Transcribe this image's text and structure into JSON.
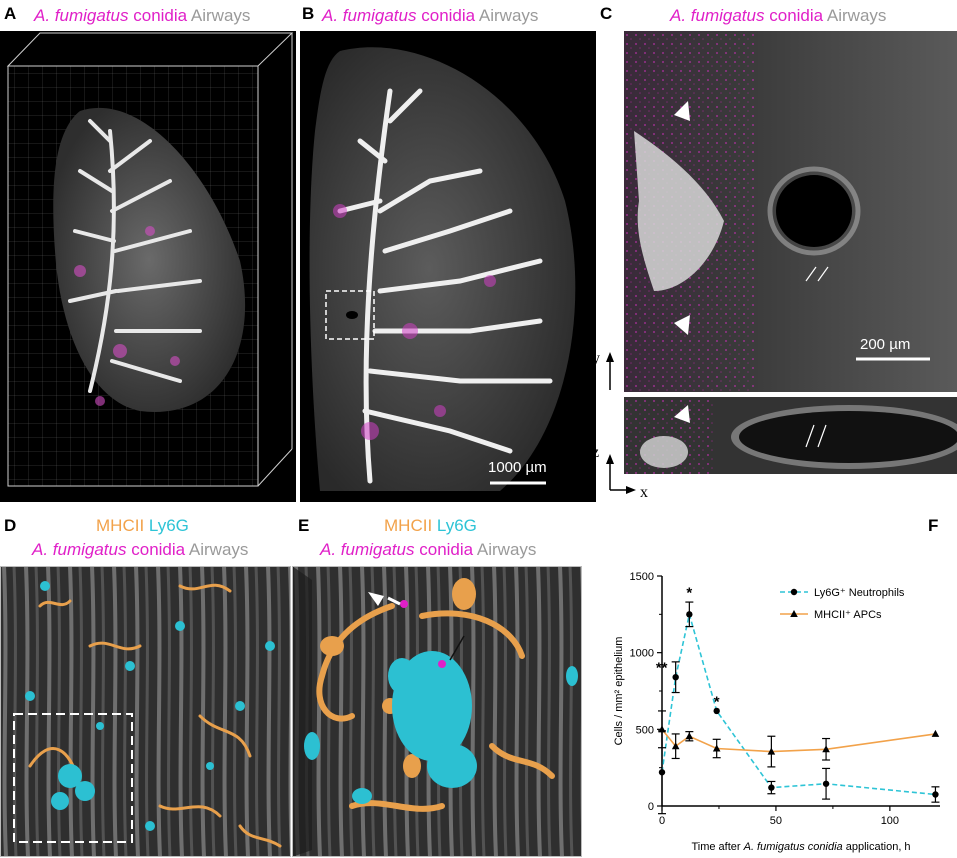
{
  "panels": {
    "A": {
      "label": "A",
      "title_species": "A. fumigatus",
      "title_conidia": "conidia",
      "title_airways": "Airways"
    },
    "B": {
      "label": "B",
      "title_species": "A. fumigatus",
      "title_conidia": "conidia",
      "title_airways": "Airways",
      "scale_bar": "1000 µm"
    },
    "C": {
      "label": "C",
      "title_species": "A. fumigatus",
      "title_conidia": "conidia",
      "title_airways": "Airways",
      "scale_bar": "200 µm",
      "axis_y": "y",
      "axis_z": "z",
      "axis_x": "x"
    },
    "D": {
      "label": "D",
      "title_mhcii": "MHCII",
      "title_ly6g": "Ly6G",
      "title_species": "A. fumigatus",
      "title_conidia": "conidia",
      "title_airways": "Airways"
    },
    "E": {
      "label": "E",
      "title_mhcii": "MHCII",
      "title_ly6g": "Ly6G",
      "title_species": "A. fumigatus",
      "title_conidia": "conidia",
      "title_airways": "Airways"
    },
    "F": {
      "label": "F"
    }
  },
  "colors": {
    "conidia": "#e020c8",
    "airways": "#9a9a9a",
    "mhcii": "#f2a24a",
    "ly6g": "#2ec4d6"
  },
  "chart_data": {
    "type": "line",
    "x_ticks": [
      "0",
      "50",
      "100"
    ],
    "y_ticks": [
      "0",
      "500",
      "1000",
      "1500"
    ],
    "xlim": [
      0,
      122
    ],
    "ylim": [
      0,
      1500
    ],
    "xlabel_pre": "Time after ",
    "xlabel_species": "A. fumigatus conidia",
    "xlabel_post": " application, h",
    "ylabel": "Cells / mm² epithelium",
    "legend_position": "top-right",
    "series": [
      {
        "name": "Ly6G⁺ Neutrophils",
        "style": "dashed",
        "marker": "circle",
        "color": "#2ec4d6",
        "x": [
          0,
          6,
          12,
          24,
          48,
          72,
          120
        ],
        "y": [
          220,
          840,
          1250,
          620,
          120,
          145,
          75
        ],
        "err": [
          270,
          100,
          80,
          0,
          40,
          100,
          50
        ]
      },
      {
        "name": "MHCII⁺ APCs",
        "style": "solid",
        "marker": "triangle",
        "color": "#f2a24a",
        "x": [
          0,
          6,
          12,
          24,
          48,
          72,
          120
        ],
        "y": [
          500,
          390,
          455,
          375,
          355,
          370,
          470
        ],
        "err": [
          120,
          80,
          30,
          60,
          100,
          70,
          0
        ]
      }
    ],
    "annotations": [
      {
        "text": "**",
        "x": 6,
        "y": 870
      },
      {
        "text": "*",
        "x": 12,
        "y": 1360
      },
      {
        "text": "*",
        "x": 24,
        "y": 650
      }
    ]
  }
}
